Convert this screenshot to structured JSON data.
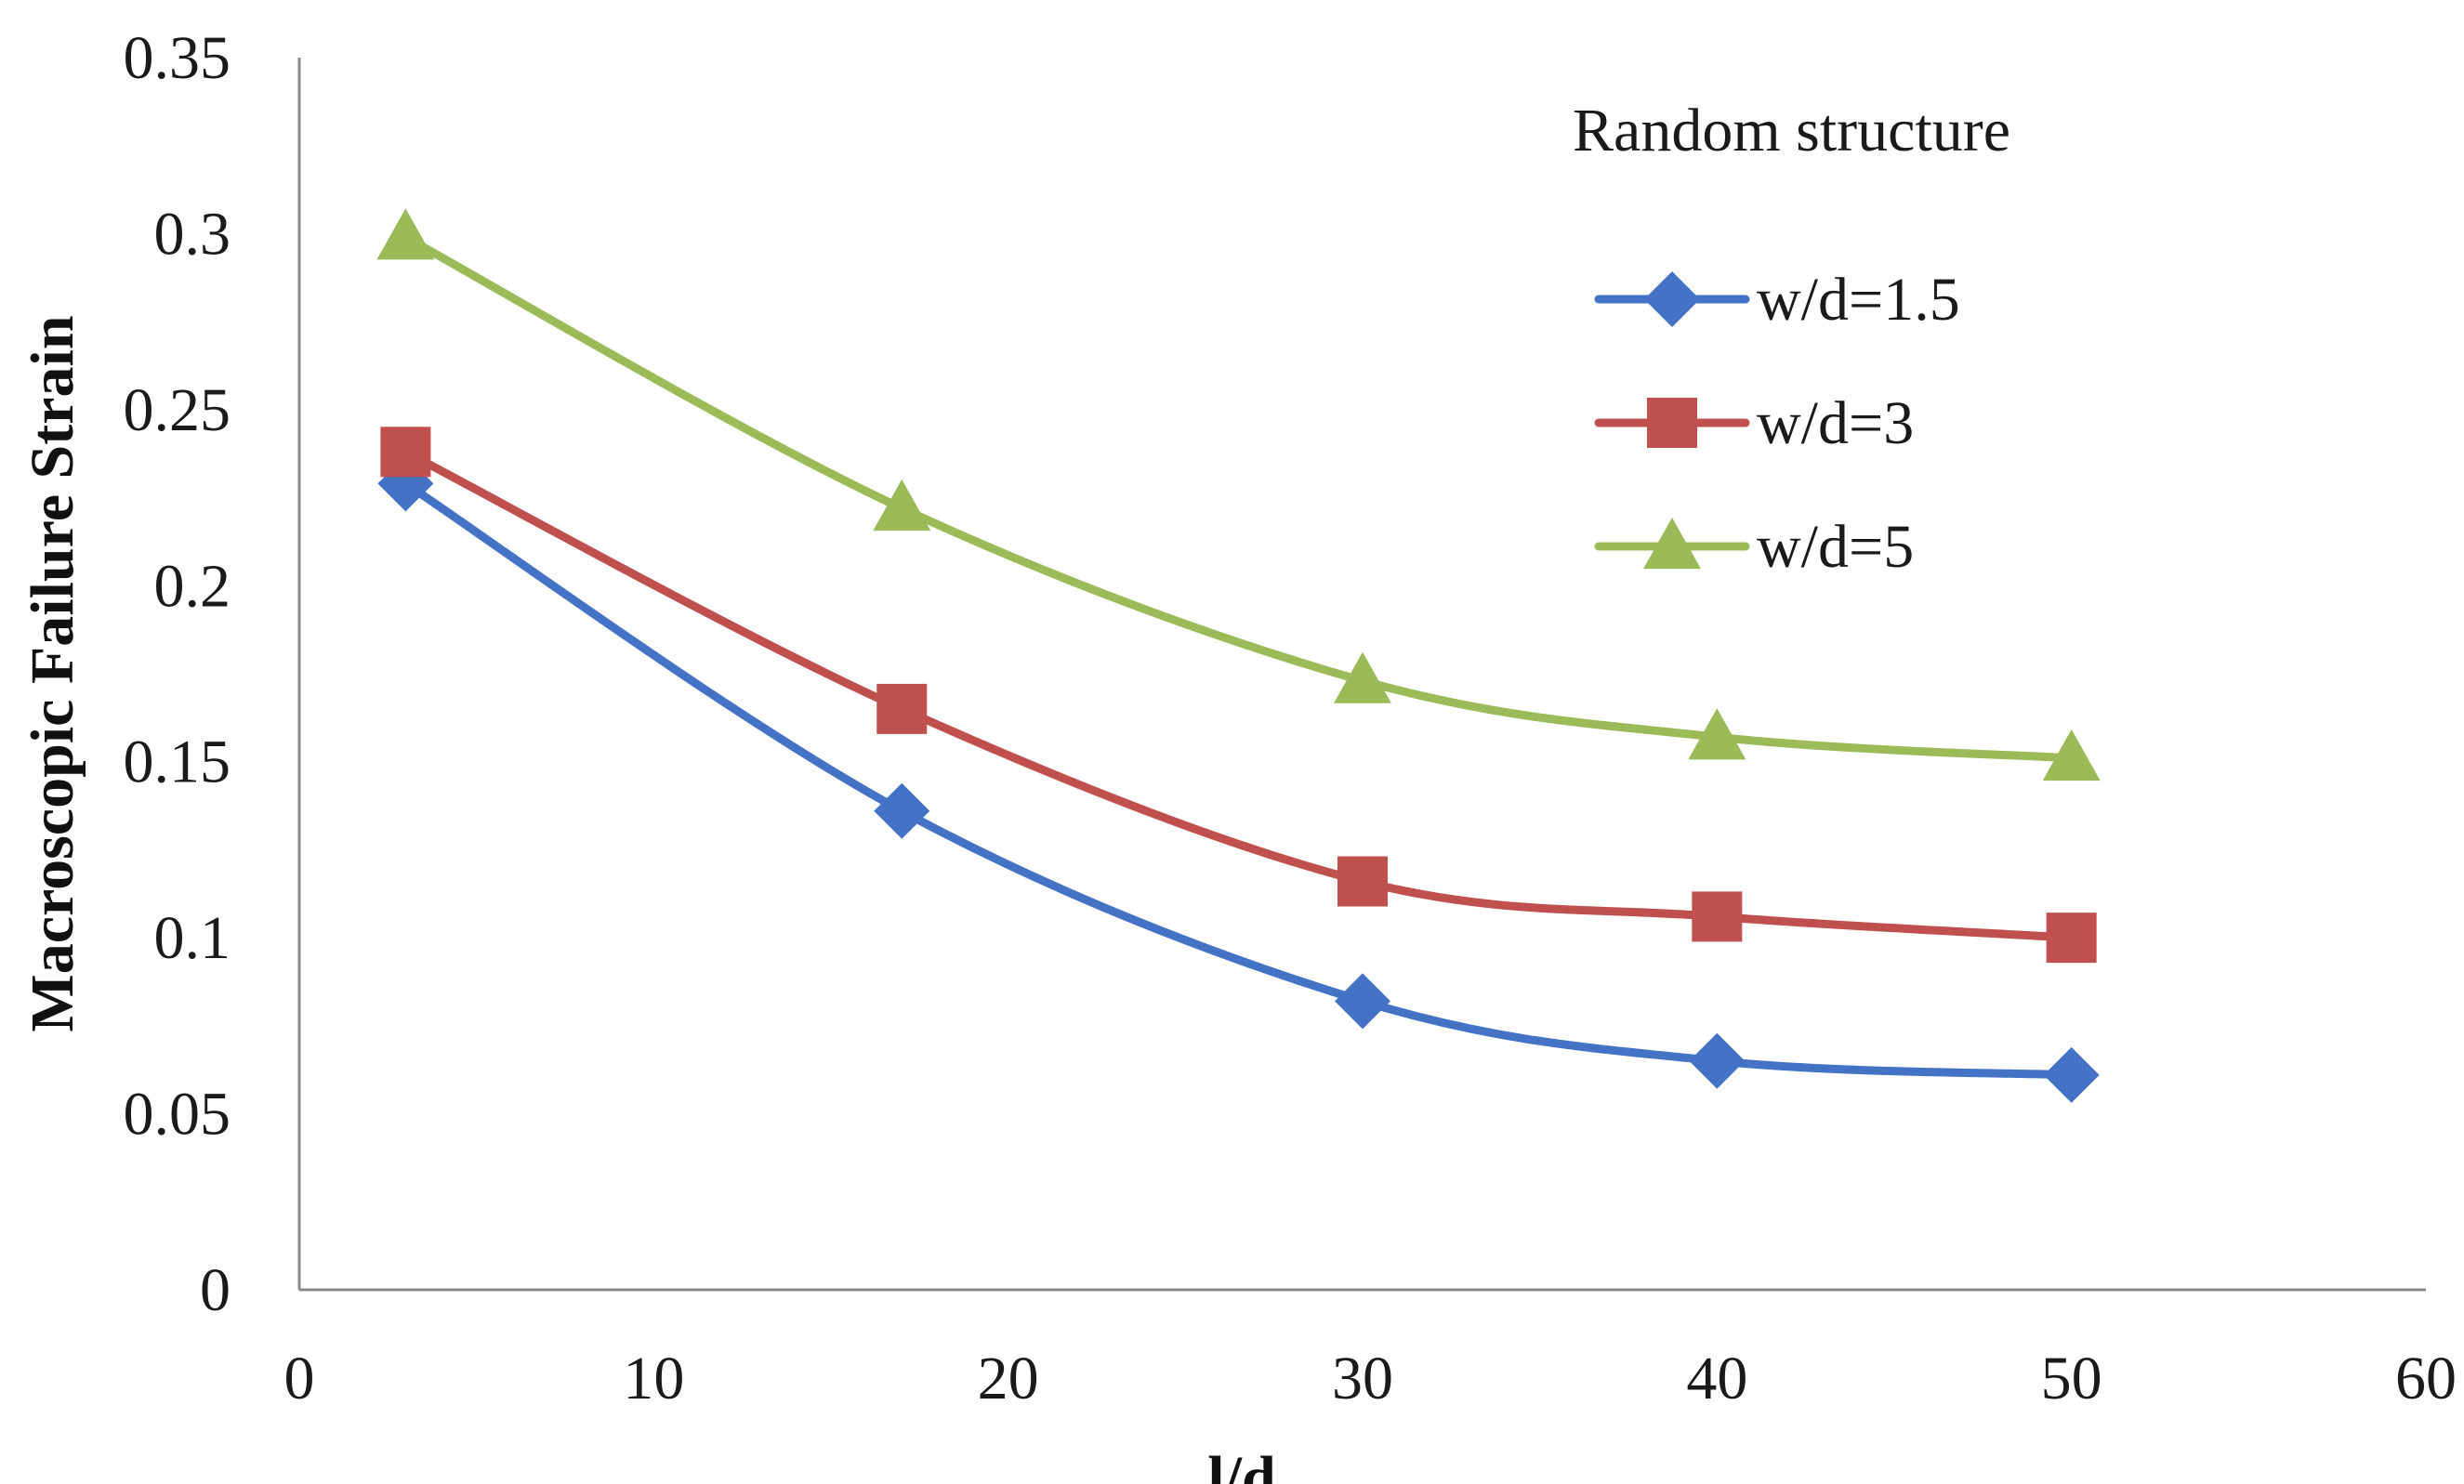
{
  "chart_data": {
    "type": "line",
    "title": "",
    "xlabel": "l/d",
    "ylabel": "Macroscopic Failure Strain",
    "xlim": [
      0,
      60
    ],
    "ylim": [
      0,
      0.35
    ],
    "x_ticks": [
      "0",
      "10",
      "20",
      "30",
      "40",
      "50",
      "60"
    ],
    "y_ticks": [
      "0",
      "0.05",
      "0.1",
      "0.15",
      "0.2",
      "0.25",
      "0.3",
      "0.35"
    ],
    "grid": false,
    "legend": {
      "title": "Random structure",
      "position": "top-right"
    },
    "x": [
      3,
      17,
      30,
      40,
      50
    ],
    "series": [
      {
        "name": "w/d=1.5",
        "marker": "diamond",
        "color": "#4472C4",
        "values": [
          0.229,
          0.136,
          0.082,
          0.065,
          0.061
        ]
      },
      {
        "name": "w/d=3",
        "marker": "square",
        "color": "#C0504D",
        "values": [
          0.238,
          0.165,
          0.116,
          0.106,
          0.1
        ]
      },
      {
        "name": "w/d=5",
        "marker": "triangle",
        "color": "#9BBB59",
        "values": [
          0.299,
          0.222,
          0.173,
          0.157,
          0.151
        ]
      }
    ]
  }
}
